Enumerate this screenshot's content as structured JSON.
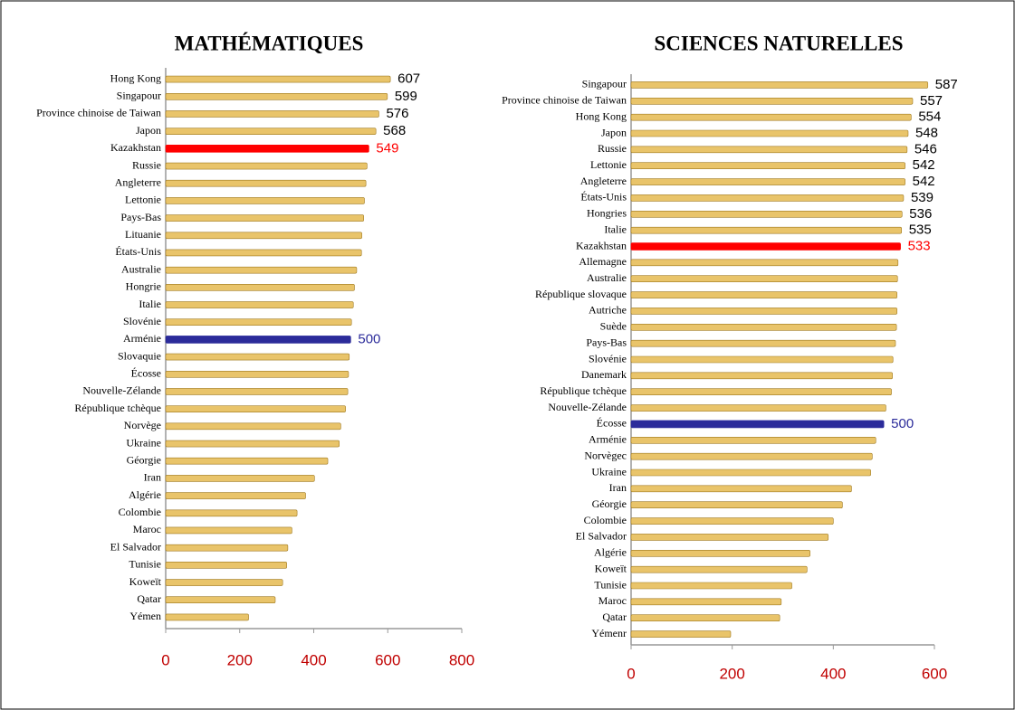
{
  "chart_data": [
    {
      "type": "bar",
      "orientation": "horizontal",
      "title": "MATHÉMATIQUES",
      "categories": [
        "Hong Kong",
        "Singapour",
        "Province chinoise de Taiwan",
        "Japon",
        "Kazakhstan",
        "Russie",
        "Angleterre",
        "Lettonie",
        "Pays-Bas",
        "Lituanie",
        "États-Unis",
        "Australie",
        "Hongrie",
        "Italie",
        "Slovénie",
        "Arménie",
        "Slovaquie",
        "Écosse",
        "Nouvelle-Zélande",
        "République tchèque",
        "Norvège",
        "Ukraine",
        "Géorgie",
        "Iran",
        "Algérie",
        "Colombie",
        "Maroc",
        "El Salvador",
        "Tunisie",
        "Koweït",
        "Qatar",
        "Yémen"
      ],
      "values": [
        607,
        599,
        576,
        568,
        549,
        544,
        541,
        537,
        535,
        530,
        529,
        516,
        510,
        507,
        502,
        500,
        496,
        494,
        492,
        486,
        473,
        469,
        438,
        402,
        378,
        355,
        341,
        330,
        327,
        316,
        296,
        224
      ],
      "color": "#e9c46a",
      "highlights": [
        {
          "index": 4,
          "color": "#ff0000"
        },
        {
          "index": 15,
          "color": "#2b2b9a"
        }
      ],
      "labeled": [
        0,
        1,
        2,
        3,
        4,
        15
      ],
      "xlim": [
        0,
        800
      ],
      "xticks": [
        0,
        200,
        400,
        600,
        800
      ]
    },
    {
      "type": "bar",
      "orientation": "horizontal",
      "title": "SCIENCES NATURELLES",
      "categories": [
        "Singapour",
        "Province chinoise de Taiwan",
        "Hong Kong",
        "Japon",
        "Russie",
        "Lettonie",
        "Angleterre",
        "États-Unis",
        "Hongries",
        "Italie",
        "Kazakhstan",
        "Allemagne",
        "Australie",
        "République slovaque",
        "Autriche",
        "Suède",
        "Pays-Bas",
        "Slovénie",
        "Danemark",
        "République tchèque",
        "Nouvelle-Zélande",
        "Écosse",
        "Arménie",
        "Norvègec",
        "Ukraine",
        "Iran",
        "Géorgie",
        "Colombie",
        "El Salvador",
        "Algérie",
        "Koweït",
        "Tunisie",
        "Maroc",
        "Qatar",
        "Yémenr"
      ],
      "values": [
        587,
        557,
        554,
        548,
        546,
        542,
        542,
        539,
        536,
        535,
        533,
        528,
        527,
        526,
        526,
        525,
        523,
        518,
        517,
        515,
        504,
        500,
        484,
        477,
        474,
        436,
        418,
        400,
        390,
        354,
        348,
        318,
        297,
        294,
        197
      ],
      "color": "#e9c46a",
      "highlights": [
        {
          "index": 10,
          "color": "#ff0000"
        },
        {
          "index": 21,
          "color": "#2b2b9a"
        }
      ],
      "labeled": [
        0,
        1,
        2,
        3,
        4,
        5,
        6,
        7,
        8,
        9,
        10,
        21
      ],
      "xlim": [
        0,
        600
      ],
      "xticks": [
        0,
        200,
        400,
        600
      ]
    }
  ]
}
